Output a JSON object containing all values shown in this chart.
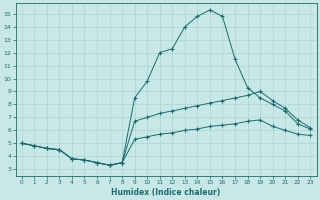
{
  "xlabel": "Humidex (Indice chaleur)",
  "xlim": [
    -0.5,
    23.5
  ],
  "ylim": [
    2.5,
    15.8
  ],
  "xticks": [
    0,
    1,
    2,
    3,
    4,
    5,
    6,
    7,
    8,
    9,
    10,
    11,
    12,
    13,
    14,
    15,
    16,
    17,
    18,
    19,
    20,
    21,
    22,
    23
  ],
  "yticks": [
    3,
    4,
    5,
    6,
    7,
    8,
    9,
    10,
    11,
    12,
    13,
    14,
    15
  ],
  "bg_color": "#c8e8e8",
  "line_color": "#1a6b6b",
  "grid_color": "#b0d8d8",
  "curve1_x": [
    0,
    1,
    2,
    3,
    4,
    5,
    6,
    7,
    8,
    9,
    10,
    11,
    12,
    13,
    14,
    15,
    16,
    17,
    18,
    19,
    20,
    21,
    22,
    23
  ],
  "curve1_y": [
    5.0,
    4.8,
    4.6,
    4.5,
    3.8,
    3.7,
    3.5,
    3.3,
    3.5,
    8.5,
    9.8,
    12.0,
    12.3,
    14.0,
    14.8,
    15.3,
    14.8,
    11.5,
    9.3,
    8.5,
    8.0,
    7.5,
    6.5,
    6.1
  ],
  "curve2_x": [
    0,
    1,
    2,
    3,
    4,
    5,
    6,
    7,
    8,
    9,
    10,
    11,
    12,
    13,
    14,
    15,
    16,
    17,
    18,
    19,
    20,
    21,
    22,
    23
  ],
  "curve2_y": [
    5.0,
    4.8,
    4.6,
    4.5,
    3.8,
    3.7,
    3.5,
    3.3,
    3.5,
    6.7,
    7.0,
    7.3,
    7.5,
    7.7,
    7.9,
    8.1,
    8.3,
    8.5,
    8.7,
    9.0,
    8.3,
    7.7,
    6.8,
    6.2
  ],
  "curve3_x": [
    0,
    1,
    2,
    3,
    4,
    5,
    6,
    7,
    8,
    9,
    10,
    11,
    12,
    13,
    14,
    15,
    16,
    17,
    18,
    19,
    20,
    21,
    22,
    23
  ],
  "curve3_y": [
    5.0,
    4.8,
    4.6,
    4.5,
    3.8,
    3.7,
    3.5,
    3.3,
    3.5,
    5.3,
    5.5,
    5.7,
    5.8,
    6.0,
    6.1,
    6.3,
    6.4,
    6.5,
    6.7,
    6.8,
    6.3,
    6.0,
    5.7,
    5.6
  ]
}
